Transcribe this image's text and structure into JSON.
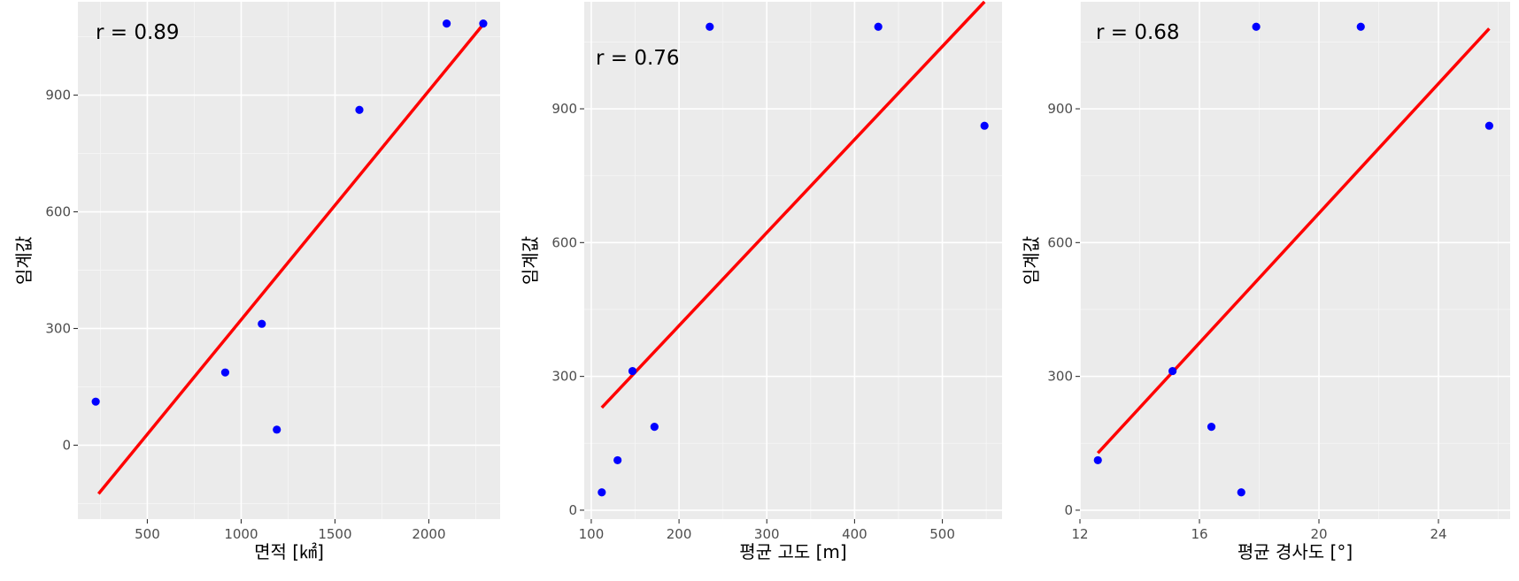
{
  "chart_data": [
    {
      "type": "scatter",
      "annotation": "r = 0.89",
      "xlabel": "면적 [㎢]",
      "ylabel": "임계값",
      "xlim": [
        130,
        2380
      ],
      "ylim": [
        -190,
        1140
      ],
      "xticks": [
        500,
        1000,
        1500,
        2000
      ],
      "yticks": [
        0,
        300,
        600,
        900
      ],
      "grid": true,
      "fit_line": {
        "x": [
          240,
          2290
        ],
        "y": [
          -125,
          1082
        ]
      },
      "points": [
        {
          "x": 225,
          "y": 112
        },
        {
          "x": 915,
          "y": 187
        },
        {
          "x": 1110,
          "y": 312
        },
        {
          "x": 1190,
          "y": 40
        },
        {
          "x": 1630,
          "y": 862
        },
        {
          "x": 2095,
          "y": 1084
        },
        {
          "x": 2290,
          "y": 1084
        }
      ]
    },
    {
      "type": "scatter",
      "annotation": "r = 0.76",
      "xlabel": "평균 고도 [m]",
      "ylabel": "임계값",
      "xlim": [
        92,
        568
      ],
      "ylim": [
        -20,
        1140
      ],
      "xticks": [
        100,
        200,
        300,
        400,
        500
      ],
      "yticks": [
        0,
        300,
        600,
        900
      ],
      "grid": true,
      "fit_line": {
        "x": [
          112,
          548
        ],
        "y": [
          230,
          1140
        ]
      },
      "points": [
        {
          "x": 112,
          "y": 40
        },
        {
          "x": 130,
          "y": 112
        },
        {
          "x": 147,
          "y": 312
        },
        {
          "x": 172,
          "y": 187
        },
        {
          "x": 235,
          "y": 1084
        },
        {
          "x": 427,
          "y": 1084
        },
        {
          "x": 548,
          "y": 862
        }
      ]
    },
    {
      "type": "scatter",
      "annotation": "r = 0.68",
      "xlabel": "평균 경사도 [°]",
      "ylabel": "임계값",
      "xlim": [
        12.0,
        26.4
      ],
      "ylim": [
        -20,
        1140
      ],
      "xticks": [
        12,
        16,
        20,
        24
      ],
      "yticks": [
        0,
        300,
        600,
        900
      ],
      "grid": true,
      "fit_line": {
        "x": [
          12.6,
          25.7
        ],
        "y": [
          128,
          1080
        ]
      },
      "points": [
        {
          "x": 12.6,
          "y": 112
        },
        {
          "x": 15.1,
          "y": 312
        },
        {
          "x": 16.4,
          "y": 187
        },
        {
          "x": 17.4,
          "y": 40
        },
        {
          "x": 17.9,
          "y": 1084
        },
        {
          "x": 21.4,
          "y": 1084
        },
        {
          "x": 25.7,
          "y": 862
        }
      ]
    }
  ]
}
